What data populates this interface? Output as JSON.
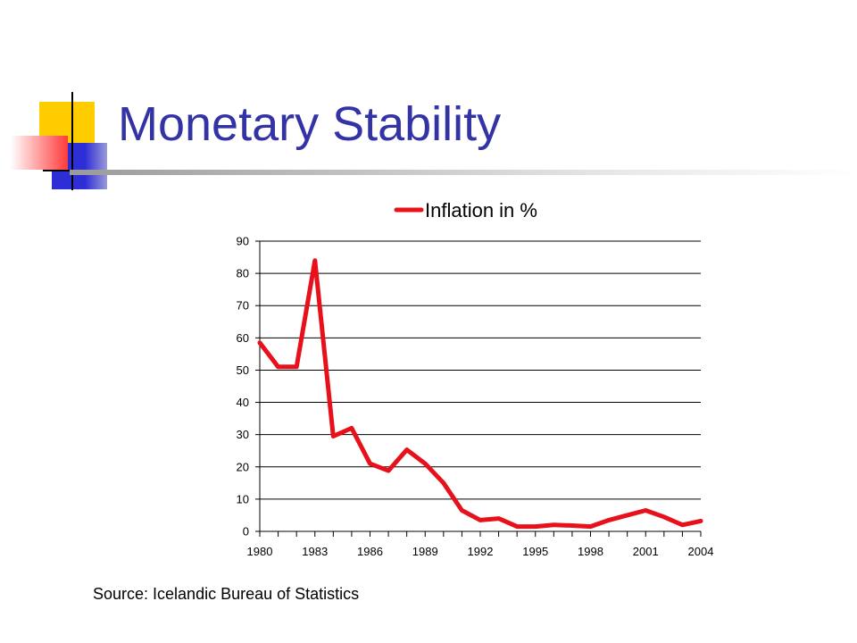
{
  "slide": {
    "title": "Monetary Stability",
    "source": "Source: Icelandic Bureau of Statistics"
  },
  "colors": {
    "title": "#3333a6",
    "series": "#e8101a",
    "deco_yellow": "#ffcc00",
    "deco_blue": "#2e2ed6",
    "deco_red": "#ff3b3b"
  },
  "chart_data": {
    "type": "line",
    "title": "",
    "xlabel": "",
    "ylabel": "",
    "legend_position": "top",
    "grid": "horizontal",
    "ylim": [
      0,
      90
    ],
    "xlim": [
      1980,
      2004
    ],
    "y_ticks": [
      0,
      10,
      20,
      30,
      40,
      50,
      60,
      70,
      80,
      90
    ],
    "x_tick_labels": [
      "1980",
      "1983",
      "1986",
      "1989",
      "1992",
      "1995",
      "1998",
      "2001",
      "2004"
    ],
    "series": [
      {
        "name": "Inflation in %",
        "x": [
          1980,
          1981,
          1982,
          1983,
          1984,
          1985,
          1986,
          1987,
          1988,
          1989,
          1990,
          1991,
          1992,
          1993,
          1994,
          1995,
          1996,
          1997,
          1998,
          1999,
          2000,
          2001,
          2002,
          2003,
          2004
        ],
        "values": [
          58.5,
          51,
          51,
          84,
          29.5,
          32,
          21,
          18.8,
          25.3,
          21,
          15,
          6.5,
          3.5,
          4,
          1.5,
          1.5,
          2,
          1.8,
          1.5,
          3.5,
          5,
          6.5,
          4.5,
          2,
          3.2
        ]
      }
    ]
  }
}
